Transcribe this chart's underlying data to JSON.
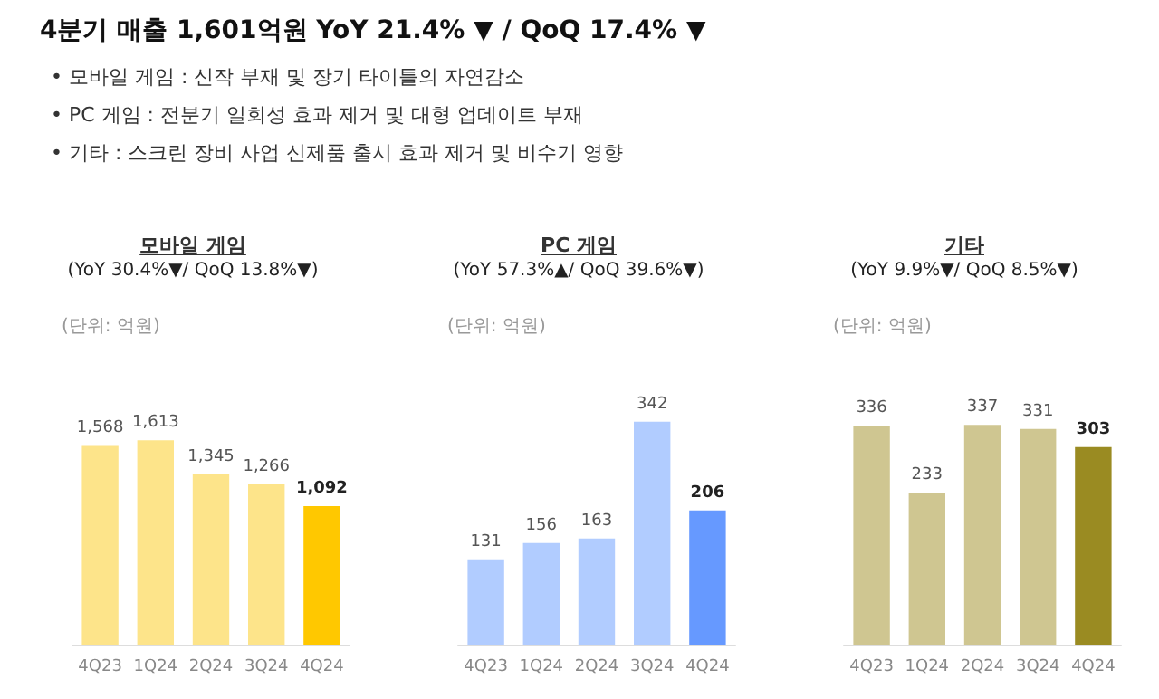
{
  "chart_data": [
    {
      "type": "other",
      "title": "4분기 매출 1,601억원 YoY 21.4% ▼ / QoQ 17.4% ▼",
      "annotations": [
        "• 모바일 게임 : 신작 부재 및 장기 타이틀의 자연감소",
        "• PC 게임 : 전분기 일회성 효과 제거 및 대형 업데이트 부재",
        "• 기타 : 스크린 장비 사업 신제품 출시 효과 제거 및 비수기 영향"
      ]
    },
    {
      "type": "bar",
      "title": "모바일 게임",
      "subtitle": "(YoY 30.4%▼/ QoQ 13.8%▼)",
      "annotations": [
        "(단위: 억원)"
      ],
      "tick_labels": "x",
      "categories": [
        "4Q23",
        "1Q24",
        "2Q24",
        "3Q24",
        "4Q24"
      ],
      "values": [
        1568,
        1613,
        1345,
        1266,
        1092
      ],
      "value_labels": [
        "1,568",
        "1,613",
        "1,345",
        "1,266",
        "1,092"
      ],
      "colors": [
        "#fde48a",
        "#fde48a",
        "#fde48a",
        "#fde48a",
        "#ffc800"
      ]
    },
    {
      "type": "bar",
      "title": "PC 게임",
      "subtitle": "(YoY 57.3%▲/ QoQ 39.6%▼)",
      "annotations": [
        "(단위: 억원)"
      ],
      "tick_labels": "x",
      "categories": [
        "4Q23",
        "1Q24",
        "2Q24",
        "3Q24",
        "4Q24"
      ],
      "values": [
        131,
        156,
        163,
        342,
        206
      ],
      "colors": [
        "#b1ccff",
        "#b1ccff",
        "#b1ccff",
        "#b1ccff",
        "#6699ff"
      ],
      "data_labels": true
    },
    {
      "type": "bar",
      "title": "기타",
      "subtitle": "(YoY 9.9%▼/ QoQ 8.5%▼)",
      "annotations": [
        "(단위: 억원)"
      ],
      "tick_labels": "x",
      "categories": [
        "4Q23",
        "1Q24",
        "2Q24",
        "3Q24",
        "4Q24"
      ],
      "values": [
        336,
        233,
        337,
        331,
        303
      ],
      "colors": [
        "#cfc691",
        "#cfc691",
        "#cfc691",
        "#cfc691",
        "#9a8b22"
      ],
      "data_labels": true
    }
  ]
}
